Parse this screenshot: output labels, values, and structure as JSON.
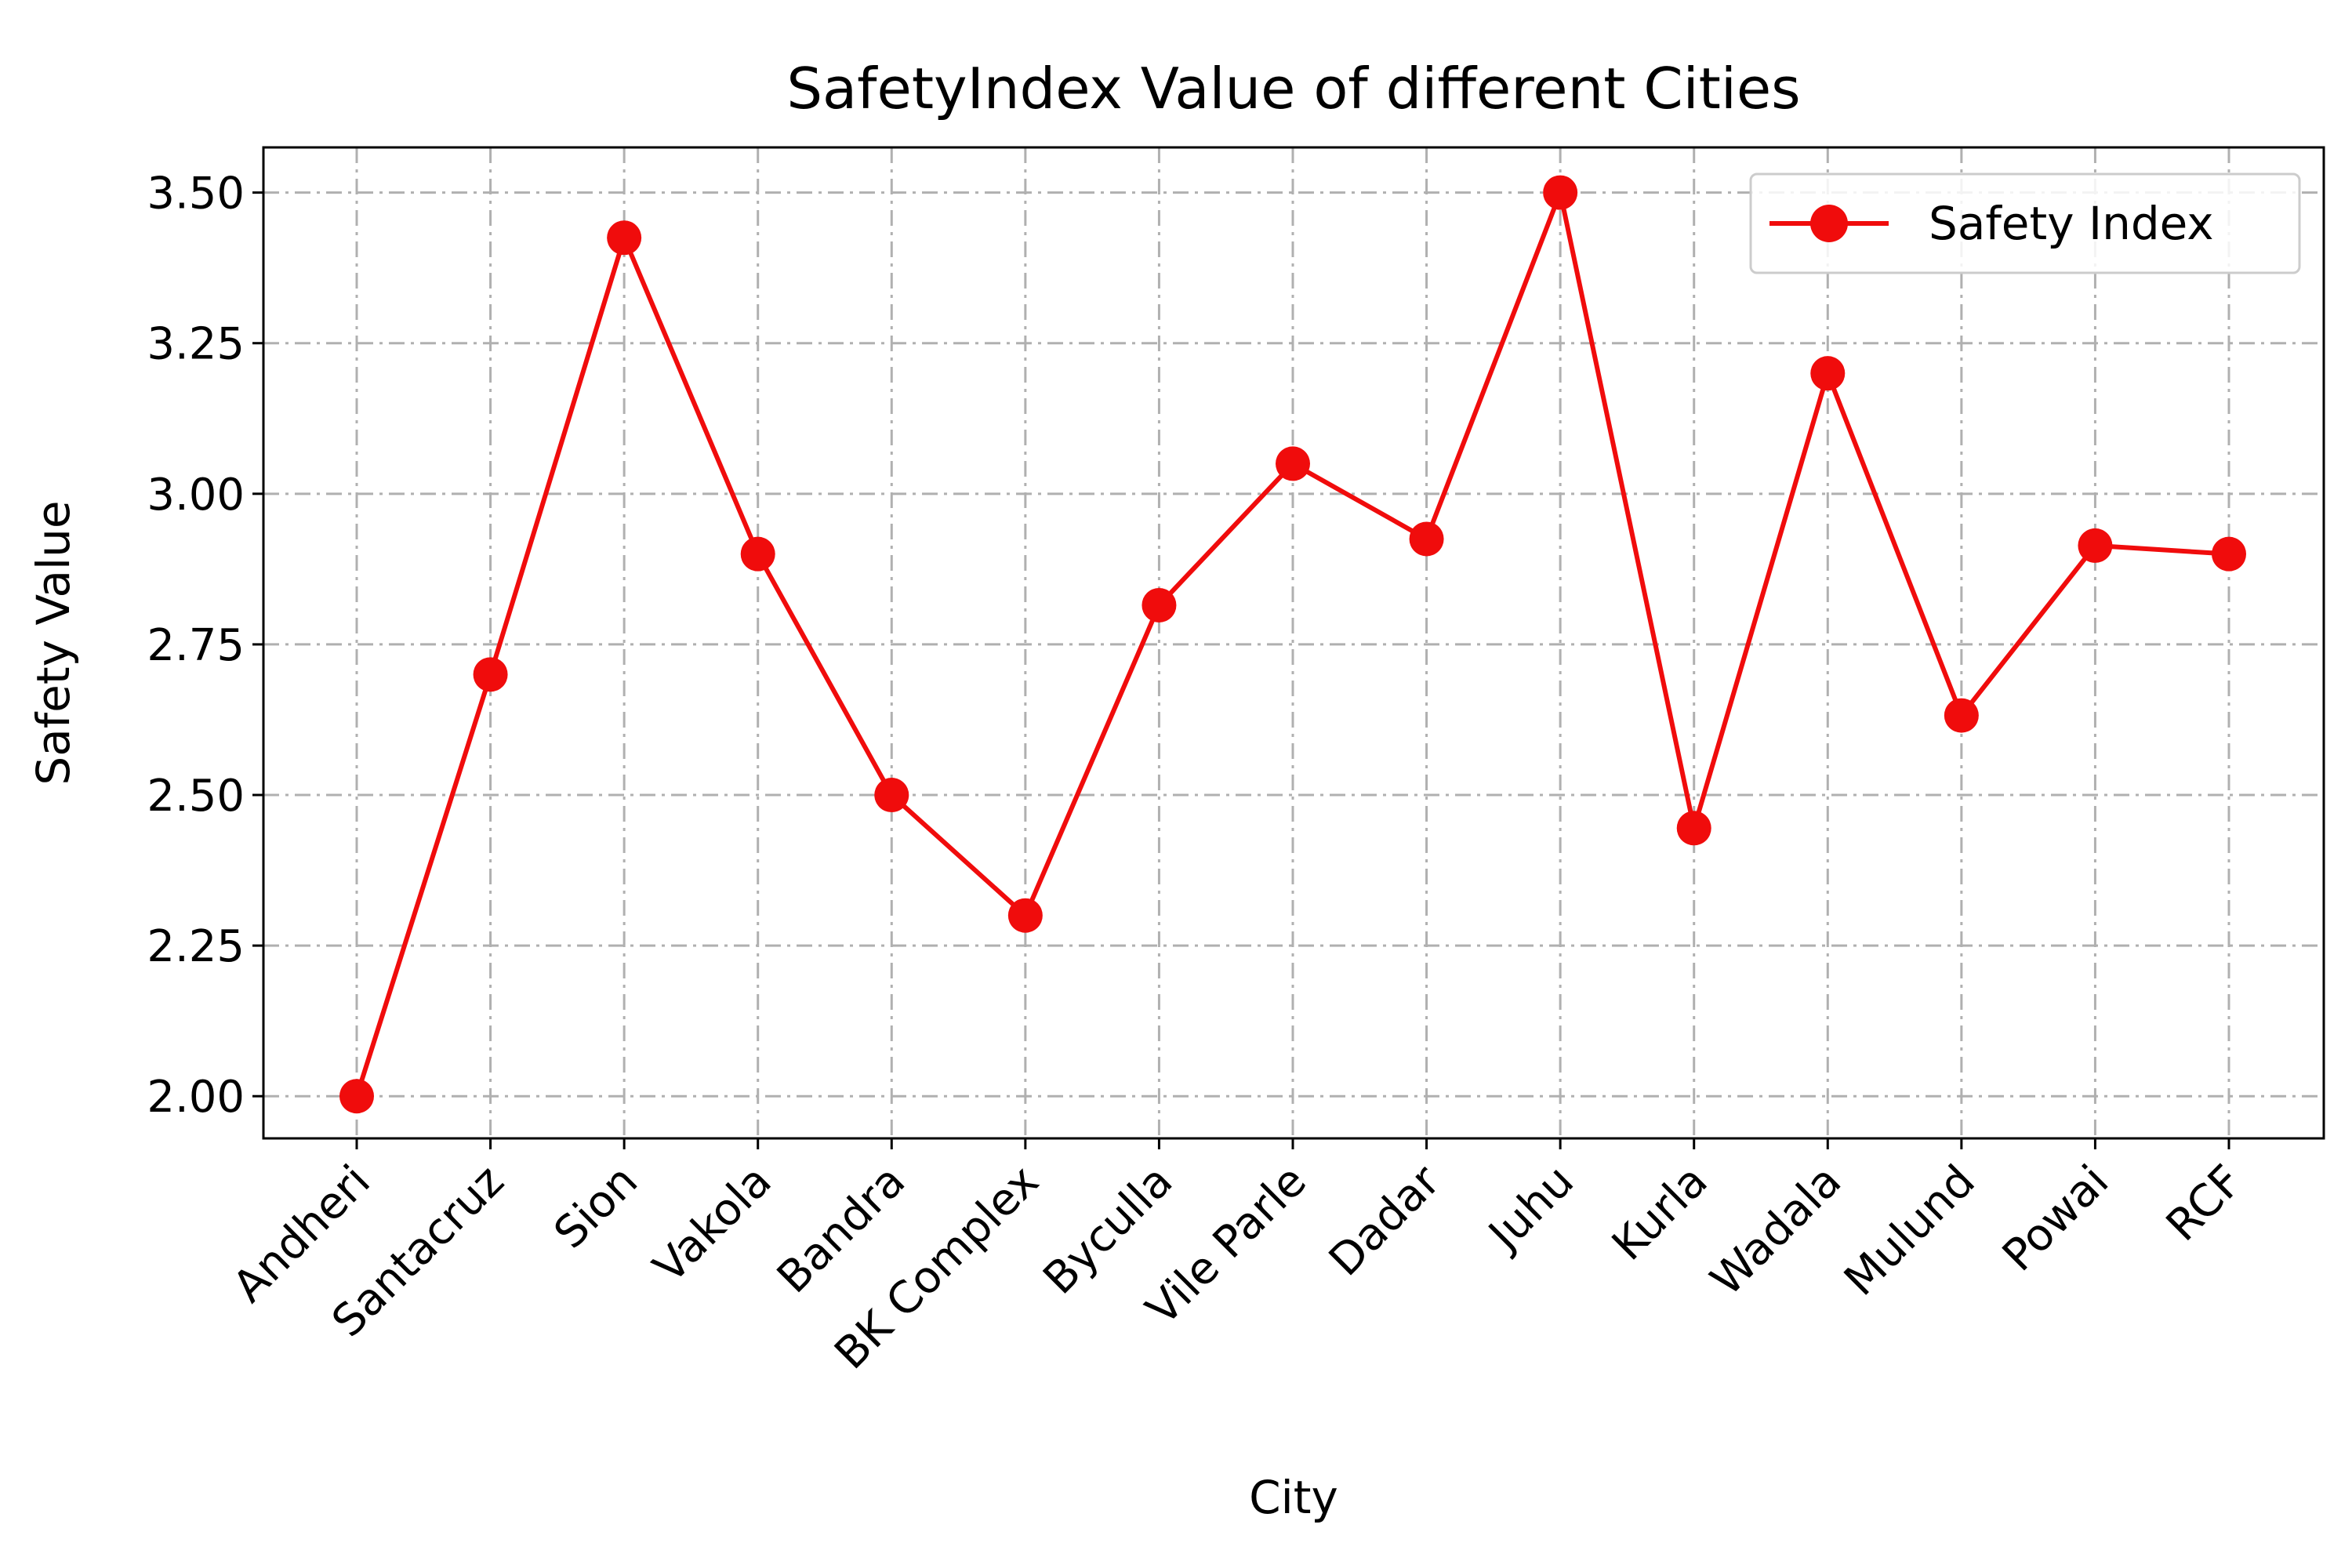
{
  "chart_data": {
    "type": "line",
    "title": "SafetyIndex Value of different Cities",
    "xlabel": "City",
    "ylabel": "Safety Value",
    "categories": [
      "Andheri",
      "Santacruz",
      "Sion",
      "Vakola",
      "Bandra",
      "BK Complex",
      "Byculla",
      "Vile Parle",
      "Dadar",
      "Juhu",
      "Kurla",
      "Wadala",
      "Mulund",
      "Powai",
      "RCF"
    ],
    "series": [
      {
        "name": "Safety Index",
        "color": "#f00c0c",
        "values": [
          2.0,
          2.7,
          3.425,
          2.9,
          2.5,
          2.3,
          2.815,
          3.05,
          2.925,
          3.5,
          2.445,
          3.2,
          2.632,
          2.914,
          2.9
        ]
      }
    ],
    "ylim": [
      1.93,
      3.575
    ],
    "yticks": [
      "2.00",
      "2.25",
      "2.50",
      "2.75",
      "3.00",
      "3.25",
      "3.50"
    ],
    "grid": true,
    "legend": "top-right"
  }
}
